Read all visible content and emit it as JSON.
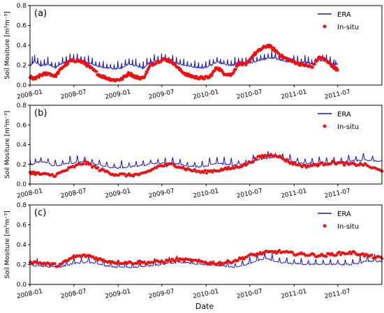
{
  "figure": {
    "ylabel": "Soil Mositure [m³m⁻³]",
    "xlabel": "Date"
  },
  "colors": {
    "era": "#1010dd",
    "insitu": "#ee1111"
  },
  "chart_data": [
    {
      "type": "line",
      "panel_label": "(a)",
      "x_range": [
        "2008-01-01",
        "2011-12-31"
      ],
      "x_ticks": [
        "2008-01",
        "2008-07",
        "2009-01",
        "2009-07",
        "2010-01",
        "2010-07",
        "2011-01",
        "2011-07"
      ],
      "ylim": [
        0.0,
        0.8
      ],
      "y_ticks": [
        "0.0",
        "0.2",
        "0.4",
        "0.6",
        "0.8"
      ],
      "ylabel": "Soil Mositure [m³m⁻³]",
      "legend_position": "top-right",
      "series": [
        {
          "name": "ERA",
          "style": "line",
          "x": [
            "2008-01-01",
            "2008-01-20",
            "2008-02-15",
            "2008-03-15",
            "2008-04-15",
            "2008-05-15",
            "2008-06-15",
            "2008-07-15",
            "2008-08-15",
            "2008-09-15",
            "2008-10-15",
            "2008-11-15",
            "2008-12-15",
            "2009-01-15",
            "2009-02-15",
            "2009-03-15",
            "2009-04-15",
            "2009-05-15",
            "2009-06-15",
            "2009-07-15",
            "2009-08-15",
            "2009-09-15",
            "2009-10-15",
            "2009-11-15",
            "2009-12-15",
            "2010-01-15",
            "2010-02-15",
            "2010-03-15",
            "2010-04-15",
            "2010-05-15",
            "2010-06-15",
            "2010-07-15",
            "2010-08-15",
            "2010-09-15",
            "2010-10-15",
            "2010-11-15",
            "2010-12-15",
            "2011-01-15",
            "2011-02-15",
            "2011-03-15",
            "2011-04-15",
            "2011-05-15",
            "2011-06-15",
            "2011-06-30"
          ],
          "y": [
            0.2,
            0.25,
            0.2,
            0.22,
            0.18,
            0.23,
            0.25,
            0.26,
            0.24,
            0.22,
            0.19,
            0.18,
            0.17,
            0.18,
            0.22,
            0.2,
            0.18,
            0.24,
            0.25,
            0.26,
            0.24,
            0.22,
            0.2,
            0.19,
            0.18,
            0.2,
            0.24,
            0.22,
            0.2,
            0.23,
            0.22,
            0.24,
            0.26,
            0.28,
            0.28,
            0.25,
            0.24,
            0.23,
            0.24,
            0.22,
            0.26,
            0.24,
            0.22,
            0.22
          ]
        },
        {
          "name": "In-situ",
          "style": "points",
          "x": [
            "2008-01-01",
            "2008-01-20",
            "2008-02-15",
            "2008-03-15",
            "2008-04-15",
            "2008-05-15",
            "2008-06-15",
            "2008-07-15",
            "2008-08-15",
            "2008-09-15",
            "2008-10-15",
            "2008-11-15",
            "2008-12-15",
            "2009-01-15",
            "2009-02-15",
            "2009-03-15",
            "2009-04-15",
            "2009-05-15",
            "2009-06-15",
            "2009-07-15",
            "2009-08-15",
            "2009-09-15",
            "2009-10-15",
            "2009-11-15",
            "2009-12-15",
            "2010-01-15",
            "2010-02-15",
            "2010-03-15",
            "2010-04-15",
            "2010-05-15",
            "2010-06-15",
            "2010-07-15",
            "2010-08-15",
            "2010-09-15",
            "2010-10-15",
            "2010-11-15",
            "2010-12-15",
            "2011-01-15",
            "2011-02-15",
            "2011-03-15",
            "2011-04-15",
            "2011-05-15",
            "2011-06-15",
            "2011-06-30"
          ],
          "y": [
            0.08,
            0.06,
            0.1,
            0.12,
            0.09,
            0.18,
            0.24,
            0.25,
            0.22,
            0.16,
            0.1,
            0.07,
            0.05,
            0.06,
            0.12,
            0.08,
            0.07,
            0.2,
            0.24,
            0.26,
            0.23,
            0.15,
            0.1,
            0.08,
            0.07,
            0.08,
            0.18,
            0.12,
            0.1,
            0.22,
            0.2,
            0.3,
            0.36,
            0.4,
            0.35,
            0.28,
            0.25,
            0.22,
            0.2,
            0.18,
            0.28,
            0.25,
            0.18,
            0.15
          ]
        }
      ]
    },
    {
      "type": "line",
      "panel_label": "(b)",
      "x_range": [
        "2008-01-01",
        "2011-12-31"
      ],
      "x_ticks": [
        "2008-01",
        "2008-07",
        "2009-01",
        "2009-07",
        "2010-01",
        "2010-07",
        "2011-01",
        "2011-07"
      ],
      "ylim": [
        0.0,
        0.8
      ],
      "y_ticks": [
        "0.0",
        "0.2",
        "0.4",
        "0.6",
        "0.8"
      ],
      "ylabel": "Soil Mositure [m³m⁻³]",
      "legend_position": "top-right",
      "series": [
        {
          "name": "ERA",
          "style": "line",
          "x": [
            "2008-01-01",
            "2008-02-15",
            "2008-04-15",
            "2008-06-15",
            "2008-08-15",
            "2008-10-15",
            "2008-12-15",
            "2009-02-15",
            "2009-04-15",
            "2009-06-15",
            "2009-08-15",
            "2009-10-15",
            "2009-12-15",
            "2010-02-15",
            "2010-04-15",
            "2010-06-15",
            "2010-08-15",
            "2010-10-15",
            "2010-12-15",
            "2011-02-15",
            "2011-04-15",
            "2011-06-15",
            "2011-08-15",
            "2011-10-15",
            "2011-12-31"
          ],
          "y": [
            0.2,
            0.24,
            0.19,
            0.22,
            0.24,
            0.2,
            0.17,
            0.18,
            0.2,
            0.22,
            0.22,
            0.19,
            0.18,
            0.22,
            0.2,
            0.21,
            0.26,
            0.28,
            0.24,
            0.22,
            0.22,
            0.22,
            0.24,
            0.25,
            0.24
          ]
        },
        {
          "name": "In-situ",
          "style": "points",
          "x": [
            "2008-01-01",
            "2008-02-15",
            "2008-04-15",
            "2008-06-15",
            "2008-08-15",
            "2008-10-15",
            "2008-12-15",
            "2009-02-15",
            "2009-04-15",
            "2009-06-15",
            "2009-08-15",
            "2009-10-15",
            "2009-12-15",
            "2010-02-15",
            "2010-04-15",
            "2010-06-15",
            "2010-08-15",
            "2010-10-15",
            "2010-12-15",
            "2011-02-15",
            "2011-04-15",
            "2011-06-15",
            "2011-08-15",
            "2011-10-15",
            "2011-12-31"
          ],
          "y": [
            0.12,
            0.1,
            0.09,
            0.16,
            0.22,
            0.15,
            0.1,
            0.09,
            0.1,
            0.18,
            0.2,
            0.15,
            0.12,
            0.14,
            0.16,
            0.2,
            0.28,
            0.3,
            0.22,
            0.18,
            0.2,
            0.22,
            0.2,
            0.2,
            0.13
          ]
        }
      ]
    },
    {
      "type": "line",
      "panel_label": "(c)",
      "x_range": [
        "2008-01-01",
        "2011-12-31"
      ],
      "x_ticks": [
        "2008-01",
        "2008-07",
        "2009-01",
        "2009-07",
        "2010-01",
        "2010-07",
        "2011-01",
        "2011-07"
      ],
      "ylim": [
        0.0,
        0.8
      ],
      "y_ticks": [
        "0.0",
        "0.2",
        "0.4",
        "0.6",
        "0.8"
      ],
      "ylabel": "Soil Mositure [m³m⁻³]",
      "xlabel": "Date",
      "legend_position": "top-right",
      "series": [
        {
          "name": "ERA",
          "style": "line",
          "x": [
            "2008-01-01",
            "2008-03-01",
            "2008-05-01",
            "2008-07-01",
            "2008-09-01",
            "2008-11-01",
            "2009-01-01",
            "2009-03-01",
            "2009-05-01",
            "2009-07-01",
            "2009-09-01",
            "2009-11-01",
            "2010-01-01",
            "2010-03-01",
            "2010-05-01",
            "2010-07-01",
            "2010-09-01",
            "2010-11-01",
            "2011-01-01",
            "2011-03-01",
            "2011-05-01",
            "2011-07-01",
            "2011-09-01",
            "2011-11-01",
            "2011-12-31"
          ],
          "y": [
            0.2,
            0.19,
            0.18,
            0.22,
            0.23,
            0.2,
            0.18,
            0.18,
            0.19,
            0.21,
            0.23,
            0.22,
            0.2,
            0.2,
            0.18,
            0.22,
            0.27,
            0.23,
            0.22,
            0.21,
            0.21,
            0.21,
            0.21,
            0.24,
            0.24
          ]
        },
        {
          "name": "In-situ",
          "style": "points",
          "x": [
            "2008-01-01",
            "2008-03-01",
            "2008-05-01",
            "2008-07-01",
            "2008-09-01",
            "2008-11-01",
            "2009-01-01",
            "2009-03-01",
            "2009-05-01",
            "2009-07-01",
            "2009-09-01",
            "2009-11-01",
            "2010-01-01",
            "2010-03-01",
            "2010-05-01",
            "2010-07-01",
            "2010-09-01",
            "2010-11-01",
            "2011-01-01",
            "2011-03-01",
            "2011-05-01",
            "2011-07-01",
            "2011-09-01",
            "2011-11-01",
            "2011-12-31"
          ],
          "y": [
            0.23,
            0.21,
            0.19,
            0.28,
            0.29,
            0.24,
            0.22,
            0.22,
            0.22,
            0.23,
            0.25,
            0.24,
            0.22,
            0.21,
            0.24,
            0.29,
            0.32,
            0.33,
            0.31,
            0.3,
            0.29,
            0.31,
            0.32,
            0.29,
            0.26
          ]
        }
      ]
    }
  ]
}
